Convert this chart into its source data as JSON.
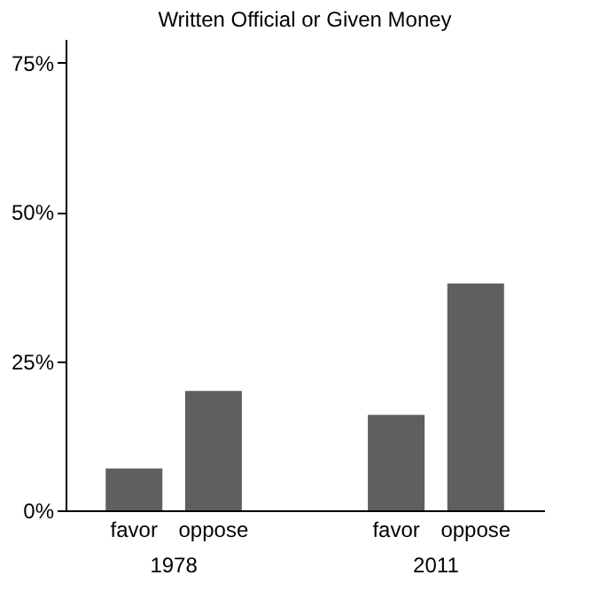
{
  "chart_data": {
    "type": "bar",
    "title": "Written Official or Given Money",
    "categories": [
      "favor",
      "oppose",
      "favor",
      "oppose"
    ],
    "values": [
      7,
      20,
      16,
      38
    ],
    "color": "#5f5f5f",
    "annotations": [
      "1978",
      "2011"
    ],
    "ylim": [
      0,
      79
    ],
    "yticks": [
      {
        "value": 0,
        "label": "0%"
      },
      {
        "value": 25,
        "label": "25%"
      },
      {
        "value": 50,
        "label": "50%"
      },
      {
        "value": 75,
        "label": "75%"
      }
    ],
    "grid": false
  }
}
